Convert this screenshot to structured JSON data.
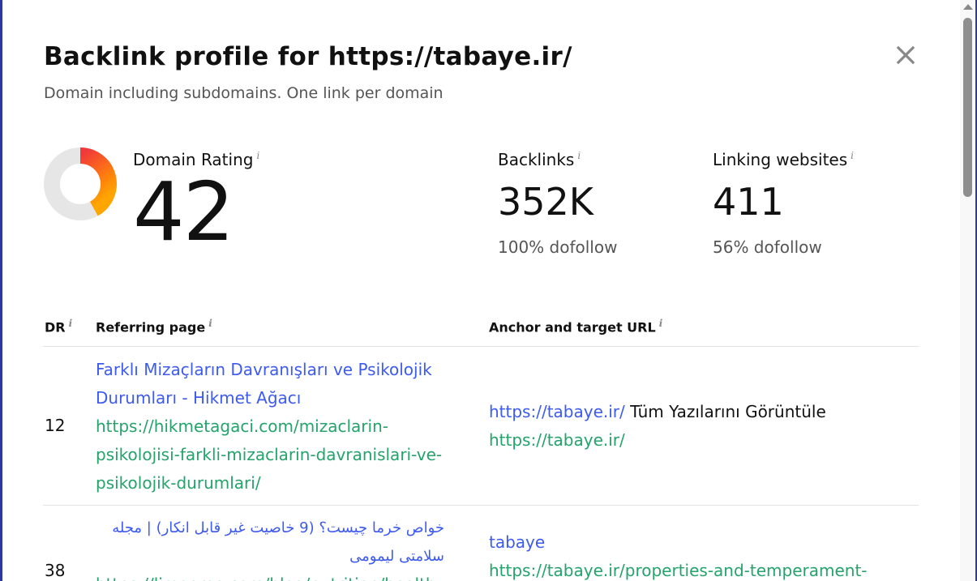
{
  "modal": {
    "title": "Backlink profile for https://tabaye.ir/",
    "subtitle": "Domain including subdomains. One link per domain",
    "close_icon": "close-icon"
  },
  "stats": {
    "domain_rating": {
      "label": "Domain Rating",
      "value": "42",
      "gauge_fraction": 0.42,
      "gauge_colors": [
        "#f0393a",
        "#ff8a00",
        "#ffa500"
      ]
    },
    "backlinks": {
      "label": "Backlinks",
      "value": "352K",
      "sub": "100% dofollow"
    },
    "linking_websites": {
      "label": "Linking websites",
      "value": "411",
      "sub": "56% dofollow"
    },
    "info_glyph": "i"
  },
  "table": {
    "headers": {
      "dr": "DR",
      "referring_page": "Referring page",
      "anchor": "Anchor and target URL"
    },
    "rows": [
      {
        "dr": "12",
        "title": "Farklı Mizaçların Davranışları ve Psikolojik Durumları - Hikmet Ağacı",
        "url": "https://hikmetagaci.com/mizaclarin-psikolojisi-farkli-mizaclarin-davranislari-ve-psikolojik-durumlari/",
        "anchor_link": "https://tabaye.ir/",
        "anchor_text": "Tüm Yazılarını Görüntüle",
        "target_url": "https://tabaye.ir/"
      },
      {
        "dr": "38",
        "title": "خواص خرما چیست؟ (9 خاصیت غیر قابل انکار) | مجله سلامتی لیمومی",
        "url": "https://limoome.com/blog/nutrition/healthy-",
        "anchor_link": "tabaye",
        "anchor_text": "",
        "target_url": "https://tabaye.ir/properties-and-temperament-"
      }
    ]
  },
  "colors": {
    "link": "#3d5af1",
    "url": "#24a36b",
    "frame": "#2a3aa0"
  }
}
